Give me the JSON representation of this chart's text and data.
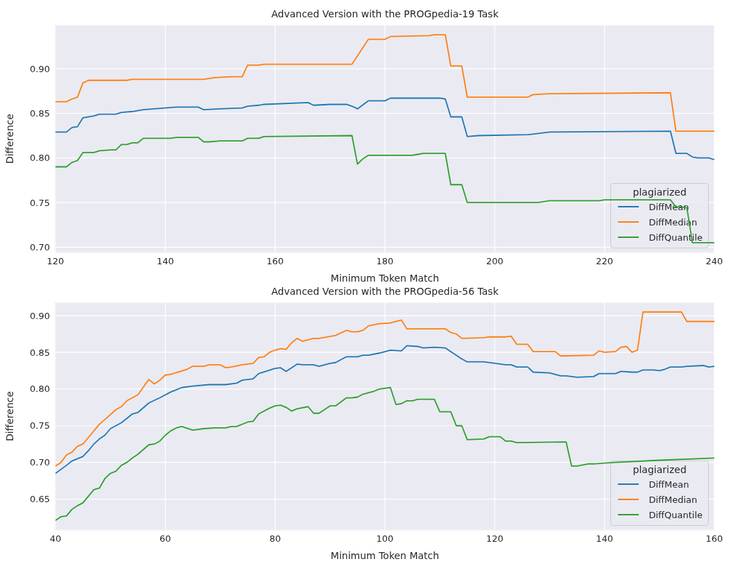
{
  "chart_data": [
    {
      "type": "line",
      "title": "Advanced Version with the PROGpedia-19 Task",
      "xlabel": "Minimum Token Match",
      "ylabel": "Difference",
      "legend_title": "plagiarized",
      "legend": "bottom right",
      "grid": true,
      "xlim": [
        120,
        240
      ],
      "xticks": [
        120,
        140,
        160,
        180,
        200,
        220,
        240
      ],
      "ylim": [
        0.694,
        0.949
      ],
      "yticks": [
        {
          "value": 0.7,
          "label": "0.70"
        },
        {
          "value": 0.75,
          "label": "0.75"
        },
        {
          "value": 0.8,
          "label": "0.80"
        },
        {
          "value": 0.85,
          "label": "0.85"
        },
        {
          "value": 0.9,
          "label": "0.90"
        }
      ],
      "series": [
        {
          "name": "DiffMean",
          "color": "#1f77b4",
          "x": [
            120,
            122,
            123,
            124,
            125,
            127,
            128,
            130,
            131,
            132,
            134,
            136,
            140,
            142,
            146,
            147,
            150,
            154,
            155,
            157,
            158,
            166,
            167,
            170,
            173,
            174,
            175,
            177,
            180,
            181,
            190,
            191,
            192,
            194,
            195,
            197,
            206,
            210,
            232,
            233,
            235,
            236,
            237,
            239,
            240
          ],
          "values": [
            0.829,
            0.829,
            0.834,
            0.835,
            0.845,
            0.847,
            0.849,
            0.849,
            0.849,
            0.851,
            0.852,
            0.854,
            0.856,
            0.857,
            0.857,
            0.854,
            0.855,
            0.856,
            0.858,
            0.859,
            0.86,
            0.862,
            0.859,
            0.86,
            0.86,
            0.858,
            0.855,
            0.864,
            0.864,
            0.867,
            0.867,
            0.866,
            0.846,
            0.846,
            0.824,
            0.825,
            0.826,
            0.829,
            0.83,
            0.805,
            0.805,
            0.801,
            0.8,
            0.8,
            0.798
          ]
        },
        {
          "name": "DiffMedian",
          "color": "#ff7f0e",
          "x": [
            120,
            122,
            123,
            124,
            125,
            126,
            133,
            134,
            147,
            149,
            152,
            154,
            155,
            157,
            158,
            174,
            177,
            180,
            181,
            188,
            189,
            191,
            192,
            194,
            195,
            206,
            207,
            210,
            232,
            233,
            240
          ],
          "values": [
            0.863,
            0.863,
            0.866,
            0.868,
            0.884,
            0.887,
            0.887,
            0.888,
            0.888,
            0.89,
            0.891,
            0.891,
            0.904,
            0.904,
            0.905,
            0.905,
            0.933,
            0.933,
            0.936,
            0.937,
            0.938,
            0.938,
            0.903,
            0.903,
            0.868,
            0.868,
            0.871,
            0.872,
            0.873,
            0.83,
            0.83
          ]
        },
        {
          "name": "DiffQuantile",
          "color": "#2ca02c",
          "x": [
            120,
            122,
            123,
            124,
            125,
            127,
            128,
            130,
            131,
            132,
            133,
            134,
            135,
            136,
            141,
            142,
            146,
            147,
            148,
            150,
            154,
            155,
            157,
            158,
            174,
            175,
            176,
            177,
            185,
            186,
            187,
            191,
            192,
            194,
            195,
            208,
            210,
            219,
            220,
            232,
            233,
            234,
            235,
            236,
            240
          ],
          "values": [
            0.79,
            0.79,
            0.795,
            0.797,
            0.806,
            0.806,
            0.808,
            0.809,
            0.809,
            0.815,
            0.815,
            0.817,
            0.817,
            0.822,
            0.822,
            0.823,
            0.823,
            0.818,
            0.818,
            0.819,
            0.819,
            0.822,
            0.822,
            0.824,
            0.825,
            0.793,
            0.799,
            0.803,
            0.803,
            0.804,
            0.805,
            0.805,
            0.77,
            0.77,
            0.75,
            0.75,
            0.752,
            0.752,
            0.753,
            0.753,
            0.745,
            0.745,
            0.744,
            0.705,
            0.705
          ]
        }
      ]
    },
    {
      "type": "line",
      "title": "Advanced Version with the PROGpedia-56 Task",
      "xlabel": "Minimum Token Match",
      "ylabel": "Difference",
      "legend_title": "plagiarized",
      "legend": "bottom right",
      "grid": true,
      "xlim": [
        40,
        160
      ],
      "xticks": [
        40,
        60,
        80,
        100,
        120,
        140,
        160
      ],
      "ylim": [
        0.608,
        0.918
      ],
      "yticks": [
        {
          "value": 0.65,
          "label": "0.65"
        },
        {
          "value": 0.7,
          "label": "0.70"
        },
        {
          "value": 0.75,
          "label": "0.75"
        },
        {
          "value": 0.8,
          "label": "0.80"
        },
        {
          "value": 0.85,
          "label": "0.85"
        },
        {
          "value": 0.9,
          "label": "0.90"
        }
      ],
      "series": [
        {
          "name": "DiffMean",
          "color": "#1f77b4",
          "x": [
            40,
            42,
            43,
            45,
            46,
            47,
            48,
            49,
            50,
            52,
            53,
            54,
            55,
            57,
            59,
            61,
            63,
            65,
            68,
            71,
            73,
            74,
            76,
            77,
            80,
            81,
            82,
            84,
            85,
            87,
            88,
            90,
            91,
            93,
            95,
            96,
            97,
            99,
            101,
            103,
            104,
            106,
            107,
            109,
            111,
            112,
            114,
            115,
            118,
            122,
            123,
            124,
            126,
            127,
            130,
            132,
            133,
            135,
            138,
            139,
            142,
            143,
            145,
            146,
            147,
            149,
            150,
            151,
            152,
            154,
            155,
            158,
            159,
            160
          ],
          "values": [
            0.685,
            0.696,
            0.702,
            0.708,
            0.716,
            0.725,
            0.732,
            0.737,
            0.746,
            0.754,
            0.76,
            0.766,
            0.768,
            0.781,
            0.788,
            0.796,
            0.802,
            0.804,
            0.806,
            0.806,
            0.808,
            0.812,
            0.814,
            0.821,
            0.828,
            0.829,
            0.824,
            0.834,
            0.833,
            0.833,
            0.831,
            0.835,
            0.836,
            0.844,
            0.844,
            0.846,
            0.846,
            0.849,
            0.853,
            0.852,
            0.859,
            0.858,
            0.856,
            0.857,
            0.856,
            0.851,
            0.841,
            0.837,
            0.837,
            0.833,
            0.833,
            0.83,
            0.83,
            0.823,
            0.822,
            0.818,
            0.818,
            0.816,
            0.817,
            0.821,
            0.821,
            0.824,
            0.823,
            0.823,
            0.826,
            0.826,
            0.825,
            0.827,
            0.83,
            0.83,
            0.831,
            0.832,
            0.83,
            0.831
          ]
        },
        {
          "name": "DiffMedian",
          "color": "#ff7f0e",
          "x": [
            40,
            41,
            42,
            43,
            44,
            45,
            48,
            50,
            51,
            52,
            53,
            55,
            57,
            58,
            59,
            60,
            61,
            64,
            65,
            67,
            68,
            70,
            71,
            72,
            74,
            76,
            77,
            78,
            79,
            80,
            81,
            82,
            83,
            84,
            85,
            86,
            87,
            88,
            91,
            93,
            94,
            95,
            96,
            97,
            99,
            101,
            103,
            104,
            111,
            112,
            113,
            114,
            118,
            119,
            122,
            123,
            124,
            126,
            127,
            131,
            132,
            138,
            139,
            140,
            142,
            143,
            144,
            145,
            146,
            147,
            154,
            155,
            160
          ],
          "values": [
            0.695,
            0.7,
            0.71,
            0.714,
            0.722,
            0.725,
            0.752,
            0.765,
            0.772,
            0.776,
            0.784,
            0.792,
            0.813,
            0.807,
            0.812,
            0.819,
            0.82,
            0.827,
            0.831,
            0.831,
            0.833,
            0.833,
            0.829,
            0.83,
            0.833,
            0.835,
            0.843,
            0.844,
            0.85,
            0.853,
            0.855,
            0.854,
            0.863,
            0.869,
            0.865,
            0.867,
            0.869,
            0.869,
            0.873,
            0.88,
            0.878,
            0.878,
            0.88,
            0.886,
            0.889,
            0.89,
            0.894,
            0.882,
            0.882,
            0.877,
            0.875,
            0.869,
            0.87,
            0.871,
            0.871,
            0.872,
            0.861,
            0.861,
            0.851,
            0.851,
            0.845,
            0.846,
            0.852,
            0.85,
            0.851,
            0.857,
            0.858,
            0.85,
            0.853,
            0.905,
            0.905,
            0.892,
            0.892
          ]
        },
        {
          "name": "DiffQuantile",
          "color": "#2ca02c",
          "x": [
            40,
            41,
            42,
            43,
            44,
            45,
            46,
            47,
            48,
            49,
            50,
            51,
            52,
            53,
            54,
            55,
            57,
            58,
            59,
            60,
            61,
            62,
            63,
            65,
            67,
            69,
            71,
            72,
            73,
            75,
            76,
            77,
            79,
            80,
            81,
            82,
            83,
            84,
            86,
            87,
            88,
            90,
            91,
            93,
            94,
            95,
            96,
            98,
            99,
            101,
            102,
            103,
            104,
            105,
            106,
            109,
            110,
            112,
            113,
            114,
            115,
            118,
            119,
            121,
            122,
            123,
            124,
            133,
            134,
            135,
            137,
            138,
            140,
            142,
            150,
            160
          ],
          "values": [
            0.621,
            0.626,
            0.627,
            0.636,
            0.641,
            0.645,
            0.654,
            0.663,
            0.665,
            0.678,
            0.685,
            0.688,
            0.696,
            0.7,
            0.706,
            0.711,
            0.724,
            0.725,
            0.729,
            0.737,
            0.743,
            0.747,
            0.749,
            0.744,
            0.746,
            0.747,
            0.747,
            0.749,
            0.749,
            0.755,
            0.756,
            0.766,
            0.774,
            0.777,
            0.778,
            0.775,
            0.77,
            0.773,
            0.776,
            0.767,
            0.767,
            0.777,
            0.777,
            0.788,
            0.788,
            0.789,
            0.793,
            0.797,
            0.8,
            0.802,
            0.779,
            0.78,
            0.784,
            0.784,
            0.786,
            0.786,
            0.769,
            0.769,
            0.75,
            0.75,
            0.731,
            0.732,
            0.735,
            0.735,
            0.729,
            0.729,
            0.727,
            0.728,
            0.695,
            0.695,
            0.698,
            0.698,
            0.699,
            0.7,
            0.703,
            0.706
          ]
        }
      ]
    }
  ]
}
